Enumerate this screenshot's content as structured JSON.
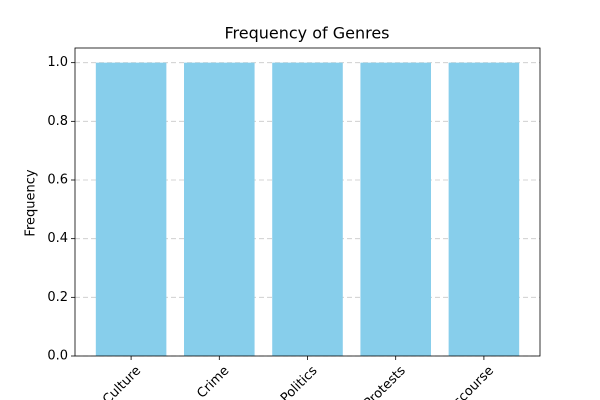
{
  "chart_data": {
    "type": "bar",
    "title": "Frequency of Genres",
    "y_label": "Frequency",
    "categories": [
      "Culture",
      "Crime",
      "Politics",
      "Protests",
      "Discourse"
    ],
    "values": [
      1,
      1,
      1,
      1,
      1
    ],
    "color": "#87ceeb",
    "ylim": [
      0,
      1.05
    ],
    "yticks": [
      {
        "value": 0,
        "label": "0.0"
      },
      0.2,
      0.4,
      0.6,
      0.8,
      {
        "value": 1,
        "label": "1.0"
      }
    ],
    "grid": true
  }
}
